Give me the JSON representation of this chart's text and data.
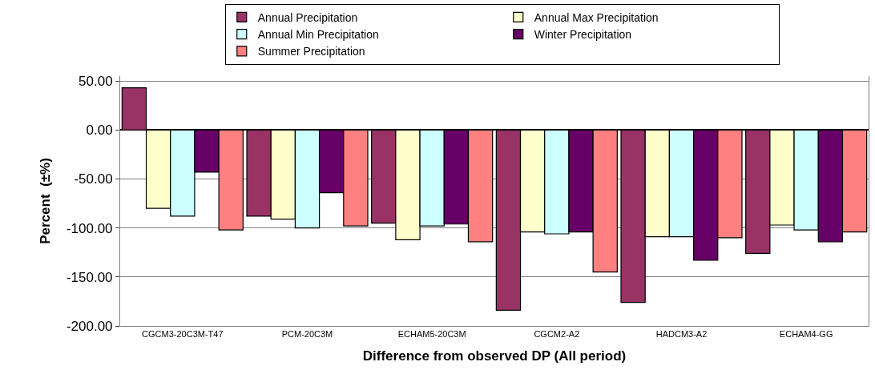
{
  "chart_data": {
    "type": "bar",
    "xlabel": "Difference from observed DP (All period)",
    "ylabel": "Percent  (±%)",
    "categories": [
      "CGCM3-20C3M-T47",
      "PCM-20C3M",
      "ECHAM5-20C3M",
      "CGCM2-A2",
      "HADCM3-A2",
      "ECHAM4-GG"
    ],
    "series": [
      {
        "name": "Annual Precipitation",
        "color": "#993366",
        "values": [
          43,
          -88,
          -95,
          -184,
          -176,
          -126
        ]
      },
      {
        "name": "Annual Max Precipitation",
        "color": "#ffffcc",
        "values": [
          -80,
          -91,
          -112,
          -104,
          -109,
          -97
        ]
      },
      {
        "name": "Annual Min Precipitation",
        "color": "#ccffff",
        "values": [
          -88,
          -100,
          -98,
          -106,
          -109,
          -102
        ]
      },
      {
        "name": "Winter Precipitation",
        "color": "#660066",
        "values": [
          -43,
          -64,
          -96,
          -104,
          -133,
          -114
        ]
      },
      {
        "name": "Summer Precipitation",
        "color": "#ff8080",
        "values": [
          -102,
          -98,
          -114,
          -145,
          -110,
          -104
        ]
      }
    ],
    "ylim": [
      -200,
      55
    ],
    "yticks": [
      {
        "value": -200,
        "label": "-200.00"
      },
      {
        "value": -150,
        "label": "-150.00"
      },
      {
        "value": -100,
        "label": "-100.00"
      },
      {
        "value": -50,
        "label": "-50.00"
      },
      {
        "value": 0,
        "label": "0.00"
      },
      {
        "value": 50,
        "label": "50.00"
      }
    ],
    "grid": "y",
    "legend": "top"
  }
}
